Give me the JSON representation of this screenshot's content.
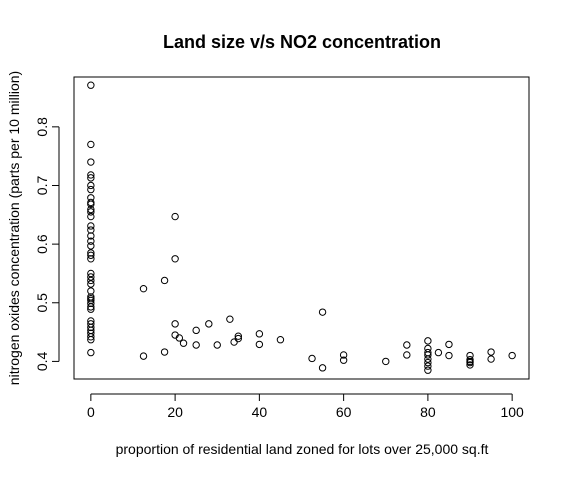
{
  "chart_data": {
    "type": "scatter",
    "title": "Land size v/s NO2 concentration",
    "xlabel": "proportion of residential land zoned for lots over 25,000 sq.ft",
    "ylabel": "nitrogen oxides concentration (parts per 10 million)",
    "xlim": [
      -4,
      104
    ],
    "ylim": [
      0.37,
      0.885
    ],
    "xticks": [
      0,
      20,
      40,
      60,
      80,
      100
    ],
    "yticks": [
      0.4,
      0.5,
      0.6,
      0.7,
      0.8
    ],
    "ytick_labels": [
      "0.4",
      "0.5",
      "0.6",
      "0.7",
      "0.8"
    ],
    "grid": false,
    "legend": false,
    "marker": "open-circle",
    "points": [
      [
        0,
        0.871
      ],
      [
        0,
        0.77
      ],
      [
        0,
        0.74
      ],
      [
        0,
        0.718
      ],
      [
        0,
        0.713
      ],
      [
        0,
        0.7
      ],
      [
        0,
        0.693
      ],
      [
        0,
        0.679
      ],
      [
        0,
        0.671
      ],
      [
        0,
        0.668
      ],
      [
        0,
        0.659
      ],
      [
        0,
        0.655
      ],
      [
        0,
        0.647
      ],
      [
        0,
        0.631
      ],
      [
        0,
        0.624
      ],
      [
        0,
        0.614
      ],
      [
        0,
        0.605
      ],
      [
        0,
        0.597
      ],
      [
        0,
        0.585
      ],
      [
        0,
        0.581
      ],
      [
        0,
        0.575
      ],
      [
        0,
        0.55
      ],
      [
        0,
        0.544
      ],
      [
        0,
        0.538
      ],
      [
        0,
        0.532
      ],
      [
        0,
        0.52
      ],
      [
        0,
        0.51
      ],
      [
        0,
        0.507
      ],
      [
        0,
        0.504
      ],
      [
        0,
        0.499
      ],
      [
        0,
        0.493
      ],
      [
        0,
        0.489
      ],
      [
        0,
        0.469
      ],
      [
        0,
        0.464
      ],
      [
        0,
        0.458
      ],
      [
        0,
        0.453
      ],
      [
        0,
        0.448
      ],
      [
        0,
        0.442
      ],
      [
        0,
        0.437
      ],
      [
        0,
        0.415
      ],
      [
        12.5,
        0.524
      ],
      [
        12.5,
        0.409
      ],
      [
        17.5,
        0.538
      ],
      [
        17.5,
        0.416
      ],
      [
        20,
        0.647
      ],
      [
        20,
        0.575
      ],
      [
        20,
        0.464
      ],
      [
        20,
        0.445
      ],
      [
        21,
        0.44
      ],
      [
        22,
        0.431
      ],
      [
        25,
        0.453
      ],
      [
        25,
        0.428
      ],
      [
        28,
        0.464
      ],
      [
        30,
        0.428
      ],
      [
        33,
        0.472
      ],
      [
        34,
        0.433
      ],
      [
        35,
        0.443
      ],
      [
        35,
        0.439
      ],
      [
        40,
        0.447
      ],
      [
        40,
        0.429
      ],
      [
        45,
        0.437
      ],
      [
        52.5,
        0.405
      ],
      [
        55,
        0.484
      ],
      [
        55,
        0.389
      ],
      [
        60,
        0.411
      ],
      [
        60,
        0.402
      ],
      [
        70,
        0.4
      ],
      [
        75,
        0.428
      ],
      [
        75,
        0.411
      ],
      [
        80,
        0.435
      ],
      [
        80,
        0.422
      ],
      [
        80,
        0.415
      ],
      [
        80,
        0.411
      ],
      [
        80,
        0.404
      ],
      [
        80,
        0.398
      ],
      [
        80,
        0.392
      ],
      [
        80,
        0.385
      ],
      [
        82.5,
        0.415
      ],
      [
        85,
        0.429
      ],
      [
        85,
        0.41
      ],
      [
        90,
        0.41
      ],
      [
        90,
        0.403
      ],
      [
        90,
        0.4
      ],
      [
        90,
        0.398
      ],
      [
        90,
        0.394
      ],
      [
        95,
        0.416
      ],
      [
        95,
        0.404
      ],
      [
        100,
        0.41
      ]
    ]
  }
}
